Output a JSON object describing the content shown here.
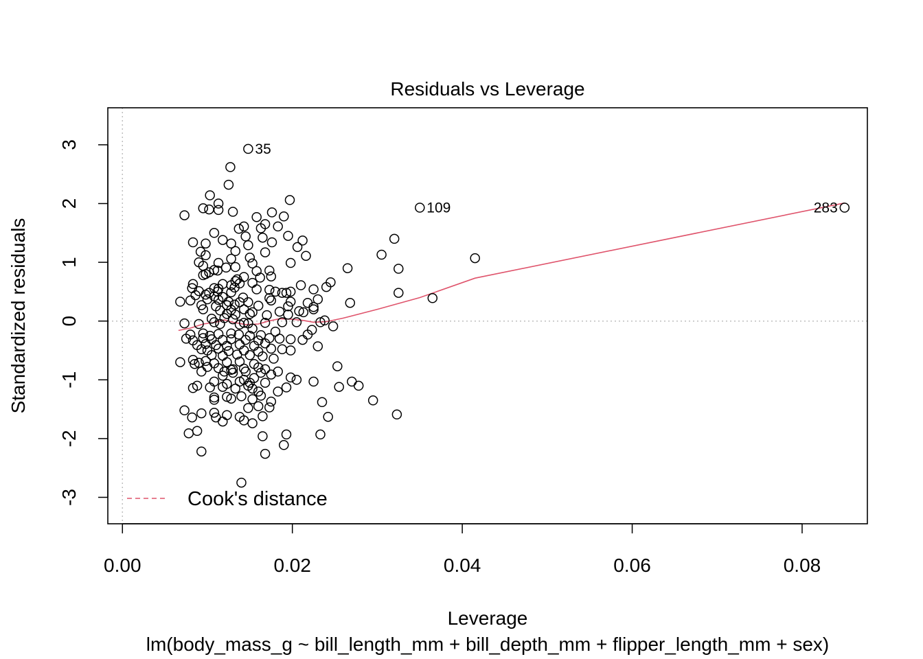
{
  "chart_data": {
    "type": "scatter",
    "title": "Residuals vs Leverage",
    "xlabel": "Leverage",
    "ylabel": "Standardized residuals",
    "caption": "lm(body_mass_g ~ bill_length_mm + bill_depth_mm + flipper_length_mm + sex)",
    "xlim": [
      -0.00172,
      0.08768
    ],
    "ylim": [
      -3.45,
      3.63
    ],
    "x_ticks": [
      0.0,
      0.02,
      0.04,
      0.06,
      0.08
    ],
    "x_tick_labels": [
      "0.00",
      "0.02",
      "0.04",
      "0.06",
      "0.08"
    ],
    "y_ticks": [
      -3,
      -2,
      -1,
      0,
      1,
      2,
      3
    ],
    "y_tick_labels": [
      "-3",
      "-2",
      "-1",
      "0",
      "1",
      "2",
      "3"
    ],
    "reference_lines": {
      "h": 0,
      "v": 0,
      "color": "#bebebe",
      "style": "dotted"
    },
    "legend": {
      "position": "bottom-left",
      "label": "Cook's distance",
      "color": "#DF536B",
      "style": "dashed"
    },
    "smooth_color": "#DF536B",
    "points": [
      [
        0.0148,
        2.93
      ],
      [
        0.0127,
        2.62
      ],
      [
        0.0125,
        2.32
      ],
      [
        0.0103,
        2.14
      ],
      [
        0.0113,
        2.0
      ],
      [
        0.0197,
        2.06
      ],
      [
        0.0095,
        1.92
      ],
      [
        0.0102,
        1.9
      ],
      [
        0.0113,
        1.89
      ],
      [
        0.013,
        1.86
      ],
      [
        0.0176,
        1.85
      ],
      [
        0.0073,
        1.8
      ],
      [
        0.019,
        1.78
      ],
      [
        0.0158,
        1.77
      ],
      [
        0.0168,
        1.65
      ],
      [
        0.0143,
        1.61
      ],
      [
        0.0163,
        1.58
      ],
      [
        0.0137,
        1.57
      ],
      [
        0.0183,
        1.61
      ],
      [
        0.0108,
        1.5
      ],
      [
        0.0145,
        1.44
      ],
      [
        0.0165,
        1.42
      ],
      [
        0.0195,
        1.45
      ],
      [
        0.0118,
        1.38
      ],
      [
        0.0083,
        1.34
      ],
      [
        0.0098,
        1.32
      ],
      [
        0.0128,
        1.32
      ],
      [
        0.0148,
        1.29
      ],
      [
        0.0176,
        1.34
      ],
      [
        0.0212,
        1.37
      ],
      [
        0.0206,
        1.26
      ],
      [
        0.0133,
        1.19
      ],
      [
        0.0168,
        1.17
      ],
      [
        0.0092,
        1.18
      ],
      [
        0.0098,
        1.12
      ],
      [
        0.015,
        1.08
      ],
      [
        0.0128,
        1.06
      ],
      [
        0.0216,
        1.11
      ],
      [
        0.009,
        1.0
      ],
      [
        0.0113,
        0.99
      ],
      [
        0.0153,
        0.98
      ],
      [
        0.0198,
        0.99
      ],
      [
        0.0095,
        0.94
      ],
      [
        0.0122,
        0.91
      ],
      [
        0.0133,
        0.92
      ],
      [
        0.0108,
        0.87
      ],
      [
        0.0112,
        0.86
      ],
      [
        0.0158,
        0.85
      ],
      [
        0.0173,
        0.86
      ],
      [
        0.0098,
        0.8
      ],
      [
        0.0102,
        0.83
      ],
      [
        0.0095,
        0.78
      ],
      [
        0.0143,
        0.75
      ],
      [
        0.0162,
        0.74
      ],
      [
        0.0175,
        0.76
      ],
      [
        0.0135,
        0.71
      ],
      [
        0.0133,
        0.68
      ],
      [
        0.0118,
        0.63
      ],
      [
        0.0128,
        0.61
      ],
      [
        0.0083,
        0.63
      ],
      [
        0.0153,
        0.65
      ],
      [
        0.0138,
        0.64
      ],
      [
        0.021,
        0.61
      ],
      [
        0.0082,
        0.56
      ],
      [
        0.0108,
        0.56
      ],
      [
        0.0113,
        0.55
      ],
      [
        0.0132,
        0.57
      ],
      [
        0.0158,
        0.54
      ],
      [
        0.0173,
        0.53
      ],
      [
        0.0225,
        0.54
      ],
      [
        0.009,
        0.51
      ],
      [
        0.0102,
        0.48
      ],
      [
        0.0112,
        0.5
      ],
      [
        0.0128,
        0.49
      ],
      [
        0.0188,
        0.48
      ],
      [
        0.0193,
        0.48
      ],
      [
        0.018,
        0.5
      ],
      [
        0.0198,
        0.5
      ],
      [
        0.0086,
        0.44
      ],
      [
        0.0098,
        0.45
      ],
      [
        0.0108,
        0.42
      ],
      [
        0.0118,
        0.41
      ],
      [
        0.0142,
        0.4
      ],
      [
        0.0173,
        0.39
      ],
      [
        0.0068,
        0.33
      ],
      [
        0.008,
        0.35
      ],
      [
        0.01,
        0.37
      ],
      [
        0.0113,
        0.36
      ],
      [
        0.0125,
        0.33
      ],
      [
        0.0138,
        0.32
      ],
      [
        0.0148,
        0.32
      ],
      [
        0.0175,
        0.35
      ],
      [
        0.0198,
        0.33
      ],
      [
        0.0218,
        0.31
      ],
      [
        0.023,
        0.37
      ],
      [
        0.0268,
        0.31
      ],
      [
        0.0093,
        0.27
      ],
      [
        0.011,
        0.25
      ],
      [
        0.0123,
        0.27
      ],
      [
        0.0132,
        0.28
      ],
      [
        0.016,
        0.26
      ],
      [
        0.0195,
        0.25
      ],
      [
        0.0225,
        0.24
      ],
      [
        0.0225,
        0.2
      ],
      [
        0.0095,
        0.2
      ],
      [
        0.0115,
        0.18
      ],
      [
        0.0128,
        0.19
      ],
      [
        0.0143,
        0.2
      ],
      [
        0.0153,
        0.15
      ],
      [
        0.0185,
        0.16
      ],
      [
        0.0208,
        0.17
      ],
      [
        0.0213,
        0.15
      ],
      [
        0.0123,
        0.12
      ],
      [
        0.0133,
        0.11
      ],
      [
        0.015,
        0.12
      ],
      [
        0.017,
        0.1
      ],
      [
        0.0195,
        0.11
      ],
      [
        0.0238,
        0.01
      ],
      [
        0.0105,
        0.04
      ],
      [
        0.012,
        0.05
      ],
      [
        0.013,
        0.03
      ],
      [
        0.0143,
        -0.03
      ],
      [
        0.0073,
        -0.04
      ],
      [
        0.009,
        -0.05
      ],
      [
        0.0108,
        -0.02
      ],
      [
        0.0115,
        -0.05
      ],
      [
        0.0138,
        -0.06
      ],
      [
        0.0148,
        -0.04
      ],
      [
        0.0168,
        -0.03
      ],
      [
        0.0188,
        -0.02
      ],
      [
        0.0205,
        -0.02
      ],
      [
        0.0233,
        -0.02
      ],
      [
        0.0248,
        -0.09
      ],
      [
        0.0153,
        -0.13
      ],
      [
        0.018,
        -0.18
      ],
      [
        0.0223,
        -0.15
      ],
      [
        0.008,
        -0.23
      ],
      [
        0.0095,
        -0.21
      ],
      [
        0.0103,
        -0.25
      ],
      [
        0.0113,
        -0.22
      ],
      [
        0.0128,
        -0.21
      ],
      [
        0.0137,
        -0.23
      ],
      [
        0.015,
        -0.25
      ],
      [
        0.0163,
        -0.24
      ],
      [
        0.0218,
        -0.23
      ],
      [
        0.0075,
        -0.3
      ],
      [
        0.0083,
        -0.33
      ],
      [
        0.0095,
        -0.29
      ],
      [
        0.0105,
        -0.31
      ],
      [
        0.0118,
        -0.32
      ],
      [
        0.0128,
        -0.31
      ],
      [
        0.0145,
        -0.32
      ],
      [
        0.016,
        -0.33
      ],
      [
        0.0173,
        -0.29
      ],
      [
        0.0185,
        -0.3
      ],
      [
        0.0198,
        -0.31
      ],
      [
        0.0212,
        -0.32
      ],
      [
        0.0088,
        -0.41
      ],
      [
        0.0098,
        -0.39
      ],
      [
        0.011,
        -0.41
      ],
      [
        0.0123,
        -0.42
      ],
      [
        0.0138,
        -0.4
      ],
      [
        0.0155,
        -0.42
      ],
      [
        0.0168,
        -0.38
      ],
      [
        0.023,
        -0.43
      ],
      [
        0.0093,
        -0.48
      ],
      [
        0.01,
        -0.5
      ],
      [
        0.0113,
        -0.47
      ],
      [
        0.0125,
        -0.51
      ],
      [
        0.0143,
        -0.5
      ],
      [
        0.016,
        -0.52
      ],
      [
        0.0175,
        -0.47
      ],
      [
        0.0188,
        -0.48
      ],
      [
        0.0198,
        -0.5
      ],
      [
        0.0105,
        -0.58
      ],
      [
        0.0118,
        -0.59
      ],
      [
        0.0135,
        -0.57
      ],
      [
        0.015,
        -0.58
      ],
      [
        0.0165,
        -0.6
      ],
      [
        0.0178,
        -0.64
      ],
      [
        0.0083,
        -0.66
      ],
      [
        0.0068,
        -0.7
      ],
      [
        0.009,
        -0.71
      ],
      [
        0.0098,
        -0.68
      ],
      [
        0.0108,
        -0.72
      ],
      [
        0.0123,
        -0.7
      ],
      [
        0.0138,
        -0.69
      ],
      [
        0.0155,
        -0.73
      ],
      [
        0.0253,
        -0.77
      ],
      [
        0.0085,
        -0.73
      ],
      [
        0.01,
        -0.78
      ],
      [
        0.0113,
        -0.8
      ],
      [
        0.013,
        -0.82
      ],
      [
        0.0143,
        -0.81
      ],
      [
        0.016,
        -0.79
      ],
      [
        0.0168,
        -0.82
      ],
      [
        0.0093,
        -0.86
      ],
      [
        0.012,
        -0.86
      ],
      [
        0.0128,
        -0.83
      ],
      [
        0.0145,
        -0.86
      ],
      [
        0.0163,
        -0.88
      ],
      [
        0.0183,
        -0.86
      ],
      [
        0.0175,
        -0.91
      ],
      [
        0.0118,
        -0.93
      ],
      [
        0.013,
        -0.88
      ],
      [
        0.0155,
        -0.97
      ],
      [
        0.0143,
        -1.0
      ],
      [
        0.0198,
        -0.96
      ],
      [
        0.0205,
        -1.0
      ],
      [
        0.0225,
        -1.03
      ],
      [
        0.027,
        -1.03
      ],
      [
        0.0108,
        -1.03
      ],
      [
        0.0123,
        -1.07
      ],
      [
        0.0138,
        -1.03
      ],
      [
        0.015,
        -1.05
      ],
      [
        0.0168,
        -1.05
      ],
      [
        0.0088,
        -1.1
      ],
      [
        0.0083,
        -1.14
      ],
      [
        0.0103,
        -1.13
      ],
      [
        0.0118,
        -1.12
      ],
      [
        0.0133,
        -1.15
      ],
      [
        0.0148,
        -1.1
      ],
      [
        0.0153,
        -1.15
      ],
      [
        0.0193,
        -1.13
      ],
      [
        0.0255,
        -1.12
      ],
      [
        0.0278,
        -1.1
      ],
      [
        0.016,
        -1.2
      ],
      [
        0.0183,
        -1.2
      ],
      [
        0.0108,
        -1.3
      ],
      [
        0.0123,
        -1.29
      ],
      [
        0.014,
        -1.28
      ],
      [
        0.0163,
        -1.27
      ],
      [
        0.0108,
        -1.34
      ],
      [
        0.0128,
        -1.32
      ],
      [
        0.0153,
        -1.33
      ],
      [
        0.0175,
        -1.37
      ],
      [
        0.0235,
        -1.38
      ],
      [
        0.0295,
        -1.35
      ],
      [
        0.0148,
        -1.48
      ],
      [
        0.016,
        -1.45
      ],
      [
        0.0173,
        -1.47
      ],
      [
        0.0073,
        -1.52
      ],
      [
        0.0093,
        -1.57
      ],
      [
        0.0108,
        -1.56
      ],
      [
        0.0123,
        -1.6
      ],
      [
        0.0138,
        -1.63
      ],
      [
        0.0165,
        -1.62
      ],
      [
        0.0242,
        -1.63
      ],
      [
        0.0323,
        -1.59
      ],
      [
        0.0082,
        -1.64
      ],
      [
        0.011,
        -1.64
      ],
      [
        0.0118,
        -1.71
      ],
      [
        0.0143,
        -1.69
      ],
      [
        0.0153,
        -1.74
      ],
      [
        0.0078,
        -1.91
      ],
      [
        0.0088,
        -1.87
      ],
      [
        0.0165,
        -1.96
      ],
      [
        0.0193,
        -1.93
      ],
      [
        0.0233,
        -1.93
      ],
      [
        0.019,
        -2.11
      ],
      [
        0.0093,
        -2.22
      ],
      [
        0.0168,
        -2.26
      ],
      [
        0.014,
        -2.75
      ],
      [
        0.0265,
        0.9
      ],
      [
        0.0325,
        0.89
      ],
      [
        0.0305,
        1.13
      ],
      [
        0.032,
        1.4
      ],
      [
        0.0245,
        0.66
      ],
      [
        0.024,
        0.58
      ],
      [
        0.0325,
        0.48
      ],
      [
        0.0365,
        0.39
      ],
      [
        0.0415,
        1.07
      ],
      [
        0.035,
        1.93
      ],
      [
        0.085,
        1.93
      ]
    ],
    "labeled_points": [
      {
        "label": "35",
        "x": 0.0148,
        "y": 2.93,
        "side": "right"
      },
      {
        "label": "109",
        "x": 0.035,
        "y": 1.93,
        "side": "right"
      },
      {
        "label": "283",
        "x": 0.085,
        "y": 1.93,
        "side": "left"
      }
    ],
    "smooth": [
      [
        0.0066,
        -0.16
      ],
      [
        0.008,
        -0.12
      ],
      [
        0.0095,
        -0.05
      ],
      [
        0.011,
        -0.02
      ],
      [
        0.012,
        0.02
      ],
      [
        0.013,
        -0.02
      ],
      [
        0.0145,
        -0.06
      ],
      [
        0.016,
        -0.05
      ],
      [
        0.0172,
        0.0
      ],
      [
        0.0185,
        0.04
      ],
      [
        0.02,
        0.03
      ],
      [
        0.0213,
        0.01
      ],
      [
        0.0225,
        -0.02
      ],
      [
        0.024,
        -0.01
      ],
      [
        0.026,
        0.05
      ],
      [
        0.03,
        0.2
      ],
      [
        0.035,
        0.4
      ],
      [
        0.0415,
        0.73
      ],
      [
        0.085,
        2.01
      ]
    ]
  }
}
